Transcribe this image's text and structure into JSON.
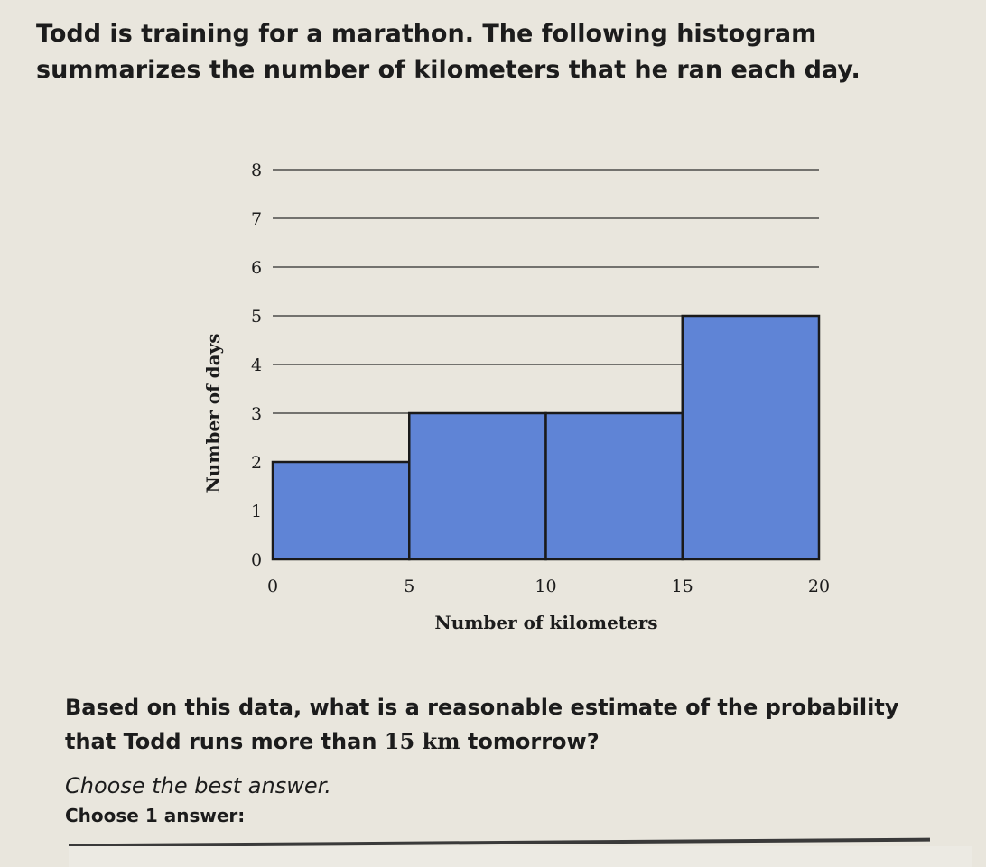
{
  "problem": {
    "intro": "Todd is training for a marathon. The following histogram summarizes the number of kilometers that he ran each day.",
    "question_before": "Based on this data, what is a reasonable estimate of the probability that Todd runs more than ",
    "question_unit": "15 km",
    "question_after": " tomorrow?",
    "instruction": "Choose the best answer.",
    "choose_label": "Choose 1 answer:"
  },
  "chart_data": {
    "type": "bar",
    "subtype": "histogram",
    "bins": [
      [
        0,
        5
      ],
      [
        5,
        10
      ],
      [
        10,
        15
      ],
      [
        15,
        20
      ]
    ],
    "values": [
      2,
      3,
      3,
      5
    ],
    "x_ticks": [
      "0",
      "5",
      "10",
      "15",
      "20"
    ],
    "y_ticks": [
      "0",
      "1",
      "2",
      "3",
      "4",
      "5",
      "6",
      "7",
      "8"
    ],
    "xlabel": "Number of kilometers",
    "ylabel": "Number of days",
    "xlim": [
      0,
      20
    ],
    "ylim": [
      0,
      8
    ],
    "grid": "horizontal",
    "bar_color": "#5f84d6"
  }
}
